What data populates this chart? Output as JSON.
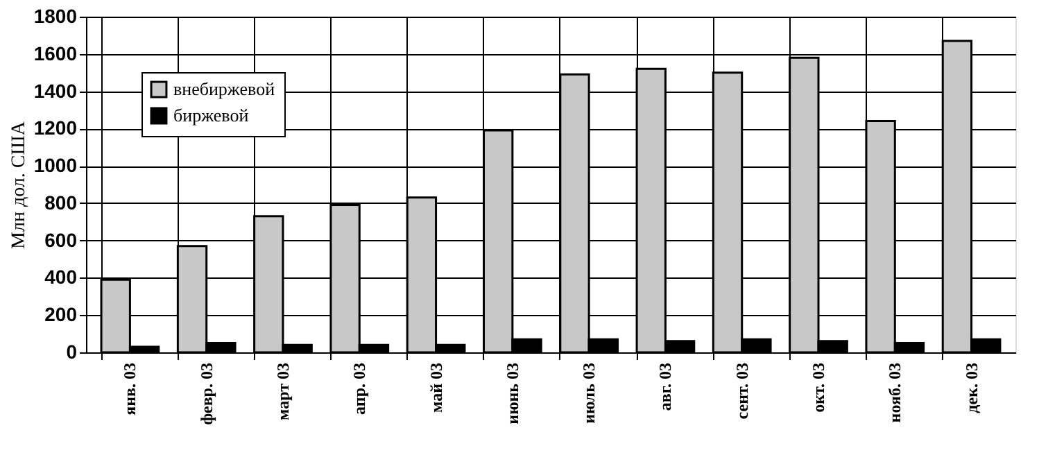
{
  "chart_data": {
    "type": "bar",
    "ylabel": "Млн дол. США",
    "categories": [
      "янв. 03",
      "февр. 03",
      "март 03",
      "апр. 03",
      "май 03",
      "июнь 03",
      "июль 03",
      "авг. 03",
      "сент. 03",
      "окт. 03",
      "нояб. 03",
      "дек. 03"
    ],
    "series": [
      {
        "name": "внебиржевой",
        "color": "#c8c8c8",
        "values": [
          390,
          570,
          730,
          790,
          830,
          1190,
          1490,
          1520,
          1500,
          1580,
          1240,
          1670
        ]
      },
      {
        "name": "биржевой",
        "color": "#000000",
        "values": [
          30,
          50,
          40,
          40,
          40,
          70,
          70,
          60,
          70,
          60,
          50,
          70
        ]
      }
    ],
    "ylim": [
      0,
      1800
    ],
    "yticks": [
      0,
      200,
      400,
      600,
      800,
      1000,
      1200,
      1400,
      1600,
      1800
    ],
    "grid": true,
    "legend": "top left"
  }
}
